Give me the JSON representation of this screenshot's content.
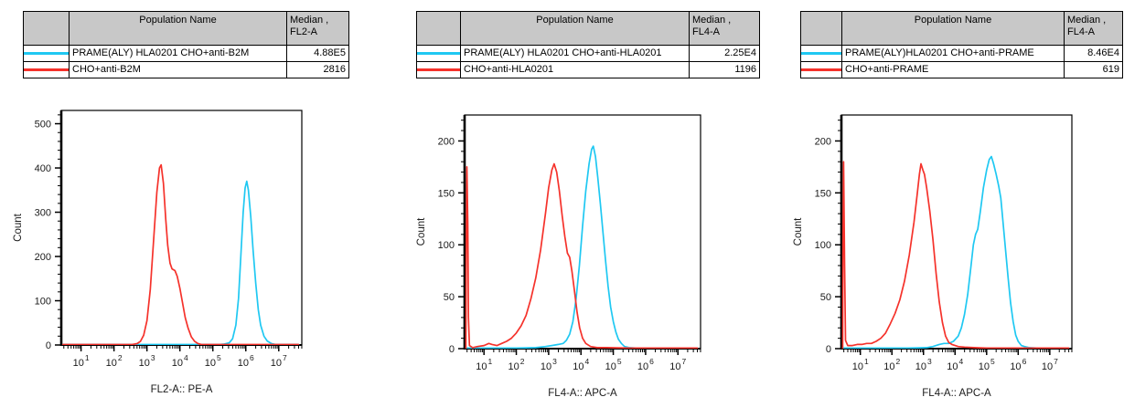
{
  "colors": {
    "cyan": "#1fc8f2",
    "red": "#f5322b",
    "table_header_bg": "#c8c8c8"
  },
  "panels": [
    {
      "table": {
        "header": {
          "population": "Population Name",
          "median_line1": "Median ,",
          "median_line2": "FL2-A"
        },
        "rows": [
          {
            "color": "#1fc8f2",
            "name": "PRAME(ALY) HLA0201 CHO+anti-B2M",
            "median": "4.88E5"
          },
          {
            "color": "#f5322b",
            "name": "CHO+anti-B2M",
            "median": "2816"
          }
        ]
      }
    },
    {
      "table": {
        "header": {
          "population": "Population Name",
          "median_line1": "Median ,",
          "median_line2": "FL4-A"
        },
        "rows": [
          {
            "color": "#1fc8f2",
            "name": "PRAME(ALY) HLA0201 CHO+anti-HLA0201",
            "median": "2.25E4"
          },
          {
            "color": "#f5322b",
            "name": "CHO+anti-HLA0201",
            "median": "1196"
          }
        ]
      }
    },
    {
      "table": {
        "header": {
          "population": "Population Name",
          "median_line1": "Median ,",
          "median_line2": "FL4-A"
        },
        "rows": [
          {
            "color": "#1fc8f2",
            "name": "PRAME(ALY)HLA0201 CHO+anti-PRAME",
            "median": "8.46E4"
          },
          {
            "color": "#f5322b",
            "name": "CHO+anti-PRAME",
            "median": "619"
          }
        ]
      }
    }
  ],
  "chart_data": [
    {
      "type": "line",
      "title": "",
      "xlabel": "FL2-A:: PE-A",
      "ylabel": "Count",
      "xscale": "log",
      "xlim_log10": [
        0.4,
        7.7
      ],
      "xticks_exponents": [
        1,
        2,
        3,
        4,
        5,
        6,
        7
      ],
      "ylim": [
        0,
        530
      ],
      "yticks": [
        0,
        100,
        200,
        300,
        400,
        500
      ],
      "y_minor_step": 20,
      "grid": false,
      "legend_position": "table-above",
      "series": [
        {
          "name": "PRAME(ALY) HLA0201 CHO+anti-B2M",
          "color": "#1fc8f2",
          "median": "4.88E5",
          "points_log10x_count": [
            [
              0.45,
              1
            ],
            [
              1.5,
              1
            ],
            [
              2.5,
              1
            ],
            [
              3.5,
              1
            ],
            [
              4.5,
              1
            ],
            [
              5.0,
              1
            ],
            [
              5.2,
              1
            ],
            [
              5.35,
              2
            ],
            [
              5.5,
              5
            ],
            [
              5.6,
              14
            ],
            [
              5.7,
              45
            ],
            [
              5.78,
              105
            ],
            [
              5.85,
              200
            ],
            [
              5.92,
              300
            ],
            [
              5.98,
              355
            ],
            [
              6.03,
              370
            ],
            [
              6.08,
              350
            ],
            [
              6.15,
              290
            ],
            [
              6.22,
              215
            ],
            [
              6.3,
              140
            ],
            [
              6.38,
              80
            ],
            [
              6.45,
              45
            ],
            [
              6.55,
              20
            ],
            [
              6.65,
              9
            ],
            [
              6.78,
              3
            ],
            [
              6.9,
              1
            ],
            [
              7.2,
              1
            ],
            [
              7.6,
              1
            ]
          ]
        },
        {
          "name": "CHO+anti-B2M",
          "color": "#f5322b",
          "median": "2816",
          "points_log10x_count": [
            [
              0.45,
              1
            ],
            [
              1.0,
              1
            ],
            [
              2.0,
              1
            ],
            [
              2.55,
              1
            ],
            [
              2.7,
              3
            ],
            [
              2.8,
              8
            ],
            [
              2.9,
              22
            ],
            [
              3.0,
              55
            ],
            [
              3.1,
              125
            ],
            [
              3.2,
              235
            ],
            [
              3.3,
              345
            ],
            [
              3.38,
              400
            ],
            [
              3.43,
              407
            ],
            [
              3.5,
              365
            ],
            [
              3.57,
              285
            ],
            [
              3.63,
              225
            ],
            [
              3.7,
              185
            ],
            [
              3.76,
              172
            ],
            [
              3.85,
              168
            ],
            [
              3.92,
              155
            ],
            [
              4.0,
              128
            ],
            [
              4.08,
              95
            ],
            [
              4.16,
              62
            ],
            [
              4.25,
              38
            ],
            [
              4.35,
              18
            ],
            [
              4.45,
              8
            ],
            [
              4.55,
              3
            ],
            [
              4.65,
              1
            ],
            [
              5.5,
              1
            ],
            [
              6.5,
              1
            ],
            [
              7.6,
              1
            ]
          ]
        }
      ]
    },
    {
      "type": "line",
      "title": "",
      "xlabel": "FL4-A:: APC-A",
      "ylabel": "Count",
      "xscale": "log",
      "xlim_log10": [
        0.4,
        7.7
      ],
      "xticks_exponents": [
        1,
        2,
        3,
        4,
        5,
        6,
        7
      ],
      "ylim": [
        0,
        225
      ],
      "yticks": [
        0,
        50,
        100,
        150,
        200
      ],
      "y_minor_step": 10,
      "grid": false,
      "legend_position": "table-above",
      "series": [
        {
          "name": "PRAME(ALY) HLA0201 CHO+anti-HLA0201",
          "color": "#1fc8f2",
          "median": "2.25E4",
          "points_log10x_count": [
            [
              0.45,
              0.5
            ],
            [
              2.0,
              0.5
            ],
            [
              2.6,
              1
            ],
            [
              2.9,
              2
            ],
            [
              3.1,
              3
            ],
            [
              3.3,
              4
            ],
            [
              3.45,
              5
            ],
            [
              3.55,
              8
            ],
            [
              3.65,
              14
            ],
            [
              3.75,
              26
            ],
            [
              3.85,
              48
            ],
            [
              3.95,
              80
            ],
            [
              4.05,
              118
            ],
            [
              4.15,
              152
            ],
            [
              4.25,
              178
            ],
            [
              4.33,
              192
            ],
            [
              4.38,
              195
            ],
            [
              4.45,
              185
            ],
            [
              4.52,
              165
            ],
            [
              4.6,
              140
            ],
            [
              4.68,
              112
            ],
            [
              4.76,
              85
            ],
            [
              4.84,
              60
            ],
            [
              4.92,
              40
            ],
            [
              5.0,
              26
            ],
            [
              5.08,
              16
            ],
            [
              5.16,
              9
            ],
            [
              5.25,
              5
            ],
            [
              5.35,
              2
            ],
            [
              5.5,
              1
            ],
            [
              5.7,
              0.5
            ],
            [
              7.6,
              0.5
            ]
          ]
        },
        {
          "name": "CHO+anti-HLA0201",
          "color": "#f5322b",
          "median": "1196",
          "points_log10x_count": [
            [
              0.44,
              0
            ],
            [
              0.45,
              90
            ],
            [
              0.47,
              175
            ],
            [
              0.5,
              120
            ],
            [
              0.52,
              30
            ],
            [
              0.55,
              3
            ],
            [
              0.65,
              1
            ],
            [
              0.8,
              2
            ],
            [
              1.0,
              3
            ],
            [
              1.15,
              5
            ],
            [
              1.25,
              4
            ],
            [
              1.4,
              3
            ],
            [
              1.55,
              5
            ],
            [
              1.7,
              7
            ],
            [
              1.85,
              10
            ],
            [
              2.0,
              15
            ],
            [
              2.15,
              22
            ],
            [
              2.3,
              32
            ],
            [
              2.45,
              48
            ],
            [
              2.6,
              68
            ],
            [
              2.75,
              95
            ],
            [
              2.9,
              130
            ],
            [
              3.0,
              155
            ],
            [
              3.1,
              172
            ],
            [
              3.17,
              178
            ],
            [
              3.25,
              170
            ],
            [
              3.33,
              152
            ],
            [
              3.42,
              128
            ],
            [
              3.5,
              108
            ],
            [
              3.58,
              92
            ],
            [
              3.65,
              88
            ],
            [
              3.72,
              75
            ],
            [
              3.8,
              55
            ],
            [
              3.88,
              35
            ],
            [
              3.96,
              20
            ],
            [
              4.05,
              10
            ],
            [
              4.15,
              5
            ],
            [
              4.3,
              2
            ],
            [
              4.5,
              1
            ],
            [
              4.8,
              1
            ],
            [
              5.5,
              0.5
            ],
            [
              7.6,
              0.5
            ]
          ]
        }
      ]
    },
    {
      "type": "line",
      "title": "",
      "xlabel": "FL4-A:: APC-A",
      "ylabel": "Count",
      "xscale": "log",
      "xlim_log10": [
        0.4,
        7.7
      ],
      "xticks_exponents": [
        1,
        2,
        3,
        4,
        5,
        6,
        7
      ],
      "ylim": [
        0,
        225
      ],
      "yticks": [
        0,
        50,
        100,
        150,
        200
      ],
      "y_minor_step": 10,
      "grid": false,
      "legend_position": "table-above",
      "series": [
        {
          "name": "PRAME(ALY)HLA0201 CHO+anti-PRAME",
          "color": "#1fc8f2",
          "median": "8.46E4",
          "points_log10x_count": [
            [
              0.45,
              0.5
            ],
            [
              2.5,
              0.5
            ],
            [
              3.1,
              1
            ],
            [
              3.3,
              2
            ],
            [
              3.5,
              4
            ],
            [
              3.65,
              5
            ],
            [
              3.8,
              5
            ],
            [
              3.95,
              7
            ],
            [
              4.1,
              12
            ],
            [
              4.2,
              20
            ],
            [
              4.3,
              33
            ],
            [
              4.4,
              52
            ],
            [
              4.5,
              78
            ],
            [
              4.58,
              100
            ],
            [
              4.65,
              110
            ],
            [
              4.72,
              115
            ],
            [
              4.8,
              132
            ],
            [
              4.9,
              155
            ],
            [
              5.0,
              172
            ],
            [
              5.08,
              182
            ],
            [
              5.15,
              185
            ],
            [
              5.22,
              178
            ],
            [
              5.3,
              168
            ],
            [
              5.38,
              157
            ],
            [
              5.45,
              145
            ],
            [
              5.52,
              122
            ],
            [
              5.6,
              95
            ],
            [
              5.68,
              68
            ],
            [
              5.76,
              44
            ],
            [
              5.84,
              26
            ],
            [
              5.92,
              13
            ],
            [
              6.0,
              7
            ],
            [
              6.1,
              3
            ],
            [
              6.2,
              2
            ],
            [
              6.35,
              1
            ],
            [
              6.6,
              0.5
            ],
            [
              7.6,
              0.5
            ]
          ]
        },
        {
          "name": "CHO+anti-PRAME",
          "color": "#f5322b",
          "median": "619",
          "points_log10x_count": [
            [
              0.44,
              0
            ],
            [
              0.45,
              100
            ],
            [
              0.47,
              180
            ],
            [
              0.5,
              80
            ],
            [
              0.53,
              8
            ],
            [
              0.6,
              3
            ],
            [
              0.75,
              3
            ],
            [
              0.9,
              4
            ],
            [
              1.05,
              4
            ],
            [
              1.2,
              5
            ],
            [
              1.35,
              5
            ],
            [
              1.5,
              7
            ],
            [
              1.65,
              10
            ],
            [
              1.8,
              15
            ],
            [
              1.95,
              24
            ],
            [
              2.1,
              34
            ],
            [
              2.25,
              47
            ],
            [
              2.4,
              65
            ],
            [
              2.55,
              90
            ],
            [
              2.7,
              122
            ],
            [
              2.8,
              148
            ],
            [
              2.87,
              168
            ],
            [
              2.92,
              178
            ],
            [
              2.98,
              172
            ],
            [
              3.03,
              168
            ],
            [
              3.1,
              155
            ],
            [
              3.2,
              132
            ],
            [
              3.3,
              105
            ],
            [
              3.4,
              72
            ],
            [
              3.5,
              45
            ],
            [
              3.6,
              25
            ],
            [
              3.7,
              12
            ],
            [
              3.8,
              6
            ],
            [
              3.9,
              4
            ],
            [
              4.0,
              3
            ],
            [
              4.1,
              2
            ],
            [
              4.3,
              1.5
            ],
            [
              4.6,
              1
            ],
            [
              5.0,
              0.5
            ],
            [
              7.6,
              0.5
            ]
          ]
        }
      ]
    }
  ]
}
